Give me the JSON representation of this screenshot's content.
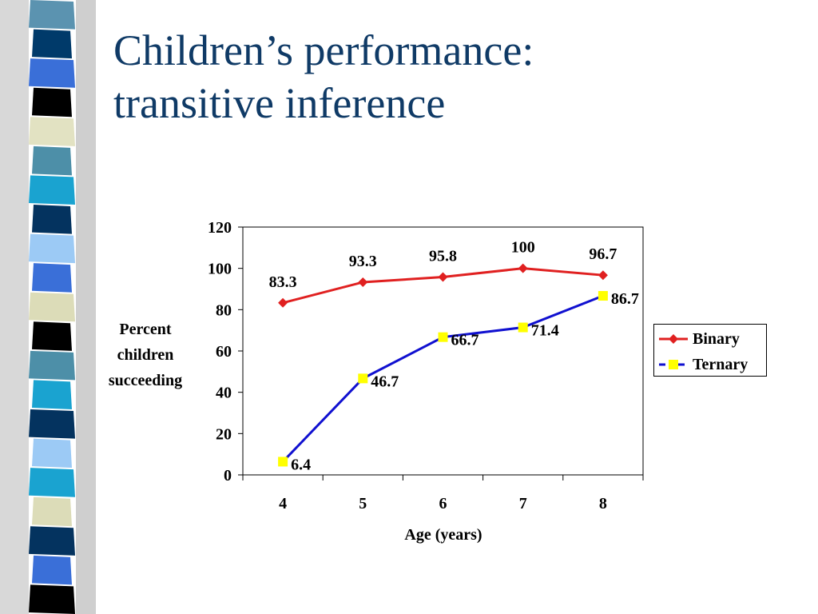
{
  "slide": {
    "title_lines": [
      "Children’s performance:",
      "transitive inference"
    ],
    "colors": {
      "title": "#0f3a66",
      "binary": "#e02020",
      "ternary": "#1010d0",
      "ternary_marker": "#ffff00"
    }
  },
  "chart_data": {
    "type": "line",
    "x": [
      4,
      5,
      6,
      7,
      8
    ],
    "series": [
      {
        "name": "Binary",
        "values": [
          83.3,
          93.3,
          95.8,
          100,
          96.7
        ],
        "data_labels": [
          "83.3",
          "93.3",
          "95.8",
          "100",
          "96.7"
        ],
        "color": "#e02020",
        "marker": "diamond"
      },
      {
        "name": "Ternary",
        "values": [
          6.4,
          46.7,
          66.7,
          71.4,
          86.7
        ],
        "data_labels": [
          "6.4",
          "46.7",
          "66.7",
          "71.4",
          "86.7"
        ],
        "color": "#1010d0",
        "marker": "square"
      }
    ],
    "ylim": [
      0,
      120
    ],
    "yticks": [
      0,
      20,
      40,
      60,
      80,
      100,
      120
    ],
    "ytick_labels": [
      "0",
      "20",
      "40",
      "60",
      "80",
      "100",
      "120"
    ],
    "xtick_labels": [
      "4",
      "5",
      "6",
      "7",
      "8"
    ],
    "ylabel_lines": [
      "Percent",
      "children",
      "succeeding"
    ],
    "xlabel": "Age (years)",
    "legend_position": "right",
    "grid": false
  }
}
